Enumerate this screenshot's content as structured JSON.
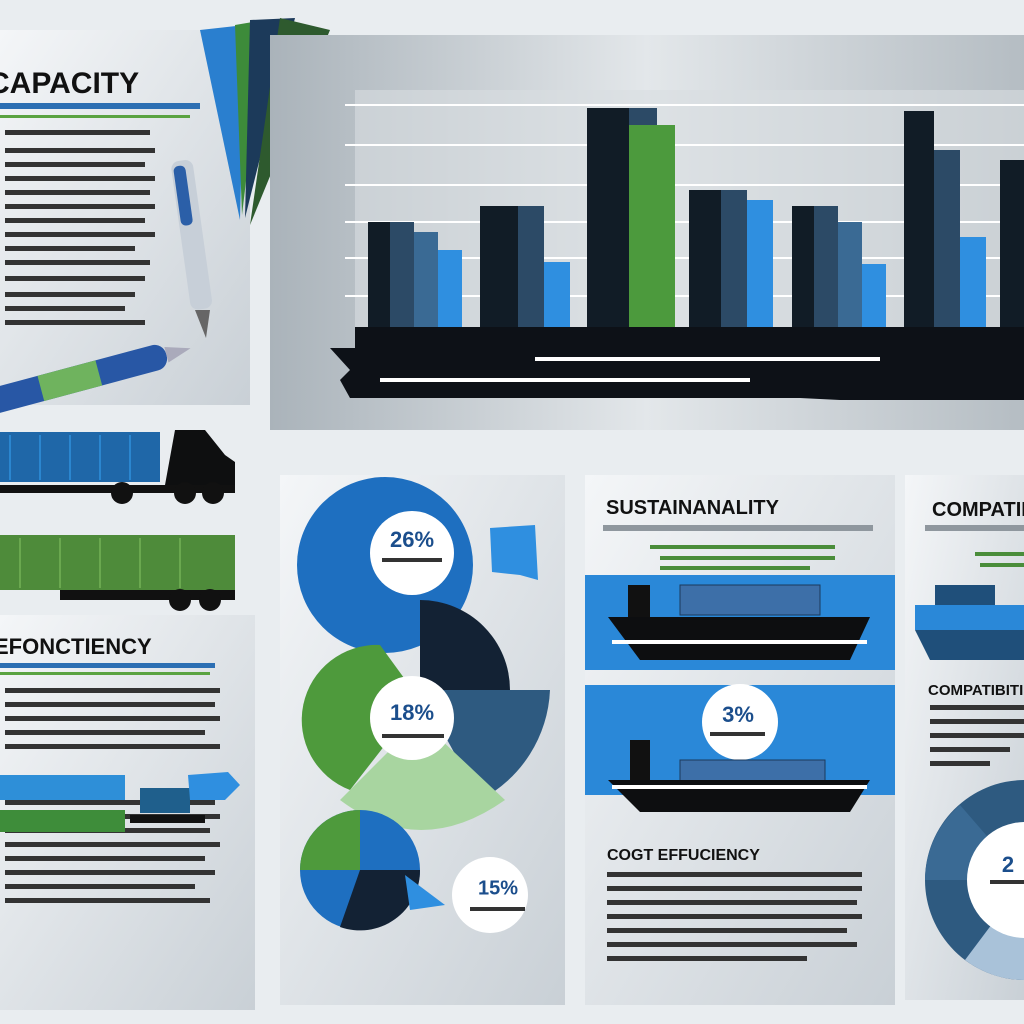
{
  "panels": {
    "capacity": {
      "title": "CAPACITY"
    },
    "efficiency": {
      "title": "EFONCTIENCY"
    },
    "sustainability": {
      "title": "SUSTAINANALITY",
      "percent": "3%",
      "subtitle": "COGT EFFUCIENCY"
    },
    "compatibility": {
      "title": "COMPATIBI",
      "subtitle": "COMPATIBITI",
      "percent": "2"
    }
  },
  "donut": {
    "labels": [
      "26%",
      "18%",
      "15%"
    ]
  }
}
